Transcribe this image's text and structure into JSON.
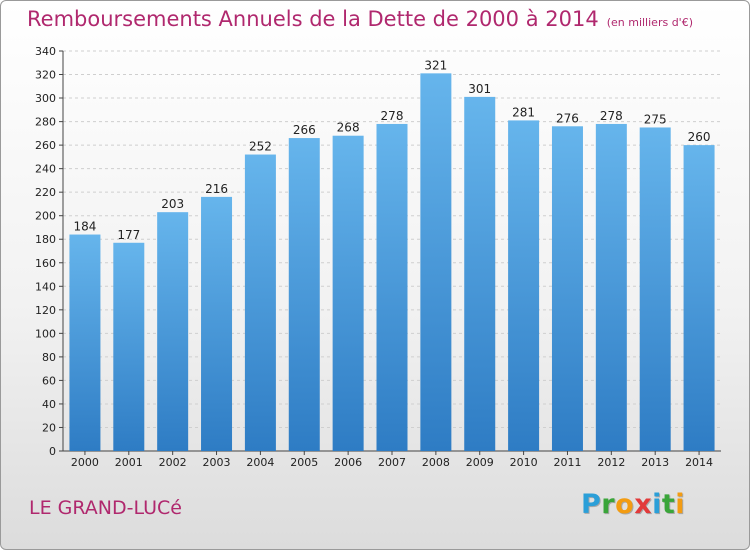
{
  "header": {
    "title": "Remboursements Annuels de la Dette de 2000 à 2014",
    "unit": "(en milliers d'€)"
  },
  "footer": {
    "city": "LE GRAND-LUCé",
    "logo": {
      "letters": [
        "P",
        "r",
        "o",
        "x",
        "i",
        "t",
        "i"
      ],
      "colors": [
        "#2b9fd8",
        "#3aa53a",
        "#f39c12",
        "#e23a3a",
        "#2b9fd8",
        "#3aa53a",
        "#f39c12"
      ]
    }
  },
  "colors": {
    "bar_light": "#66b5ec",
    "bar_dark": "#2e7cc4",
    "title": "#b0286e"
  },
  "chart_data": {
    "type": "bar",
    "title": "Remboursements Annuels de la Dette de 2000 à 2014",
    "xlabel": "",
    "ylabel": "",
    "categories": [
      "2000",
      "2001",
      "2002",
      "2003",
      "2004",
      "2005",
      "2006",
      "2007",
      "2008",
      "2009",
      "2010",
      "2011",
      "2012",
      "2013",
      "2014"
    ],
    "values": [
      184,
      177,
      203,
      216,
      252,
      266,
      268,
      278,
      321,
      301,
      281,
      276,
      278,
      275,
      260
    ],
    "ylim": [
      0,
      340
    ],
    "yticks": [
      0,
      20,
      40,
      60,
      80,
      100,
      120,
      140,
      160,
      180,
      200,
      220,
      240,
      260,
      280,
      300,
      320,
      340
    ],
    "grid": true
  }
}
